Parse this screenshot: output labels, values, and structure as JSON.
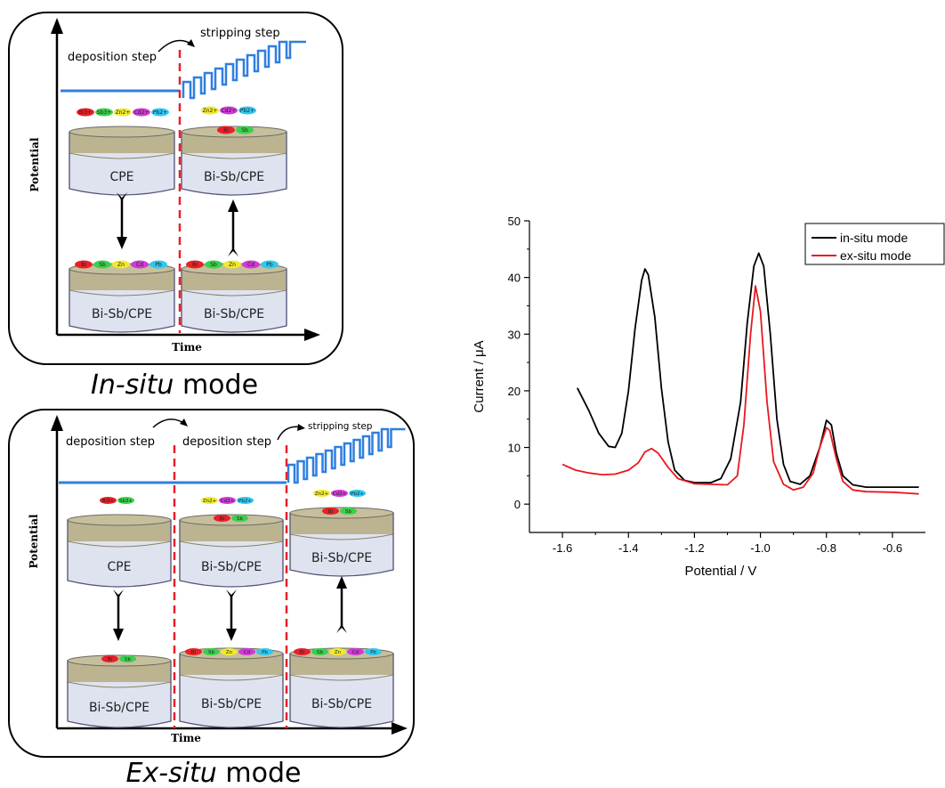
{
  "insitu": {
    "axis_y": "Potential",
    "axis_x": "Time",
    "deposition_label": "deposition step",
    "stripping_label": "stripping step",
    "caption_italic": "In-situ",
    "caption_rest": " mode",
    "solution_ions": [
      "Bi3+",
      "Sb3+",
      "Zn2+",
      "Cd2+",
      "Pb2+"
    ],
    "solution_ions_after": [
      "Zn2+",
      "Cd2+",
      "Pb2+"
    ],
    "deposited_top": [
      "Bi",
      "Sb"
    ],
    "deposited_bottom": [
      "Bi",
      "Sb",
      "Zn",
      "Cd",
      "Pb"
    ],
    "electrodes": [
      "CPE",
      "Bi-Sb/CPE",
      "Bi-Sb/CPE",
      "Bi-Sb/CPE"
    ]
  },
  "exsitu": {
    "axis_y": "Potential",
    "axis_x": "Time",
    "deposition_label_1": "deposition step",
    "deposition_label_2": "deposition step",
    "stripping_label": "stripping step",
    "caption_italic": "Ex-situ",
    "caption_rest": " mode",
    "solution_ions_1": [
      "Bi3+",
      "Sb3+"
    ],
    "solution_ions_2": [
      "Zn2+",
      "Cd2+",
      "Pb2+"
    ],
    "solution_ions_3": [
      "Zn2+",
      "Cd2+",
      "Pb2+"
    ],
    "deposited_bisb": [
      "Bi",
      "Sb"
    ],
    "deposited_full": [
      "Bi",
      "Sb",
      "Zn",
      "Cd",
      "Pb"
    ],
    "electrodes": [
      "CPE",
      "Bi-Sb/CPE",
      "Bi-Sb/CPE",
      "Bi-Sb/CPE",
      "Bi-Sb/CPE",
      "Bi-Sb/CPE"
    ]
  },
  "ion_colors": {
    "Bi": "#e8202a",
    "Sb": "#3ad14a",
    "Zn": "#f0ea2e",
    "Cd": "#d13ad6",
    "Pb": "#2ec8f0"
  },
  "chart_data": {
    "type": "line",
    "xlabel": "Potential / V",
    "ylabel": "Current / μA",
    "xlim": [
      -1.7,
      -0.5
    ],
    "ylim": [
      -5,
      50
    ],
    "xticks": [
      -1.6,
      -1.4,
      -1.2,
      -1.0,
      -0.8,
      -0.6
    ],
    "xtick_labels": [
      "-1.6",
      "-1.4",
      "-1.2",
      "-1.0",
      "-0.8",
      "-0.6"
    ],
    "yticks": [
      0,
      10,
      20,
      30,
      40,
      50
    ],
    "ytick_labels": [
      "0",
      "10",
      "20",
      "30",
      "40",
      "50"
    ],
    "legend_position": "top-right",
    "series": [
      {
        "name": "in-situ mode",
        "color": "#000000",
        "points": [
          [
            -1.555,
            20.5
          ],
          [
            -1.52,
            16.5
          ],
          [
            -1.49,
            12.5
          ],
          [
            -1.46,
            10.2
          ],
          [
            -1.44,
            10.0
          ],
          [
            -1.42,
            12.5
          ],
          [
            -1.4,
            20.0
          ],
          [
            -1.38,
            31.0
          ],
          [
            -1.36,
            39.5
          ],
          [
            -1.35,
            41.5
          ],
          [
            -1.34,
            40.5
          ],
          [
            -1.32,
            33.0
          ],
          [
            -1.3,
            20.5
          ],
          [
            -1.28,
            11.0
          ],
          [
            -1.26,
            6.0
          ],
          [
            -1.23,
            4.2
          ],
          [
            -1.2,
            3.8
          ],
          [
            -1.15,
            3.8
          ],
          [
            -1.12,
            4.5
          ],
          [
            -1.09,
            8.0
          ],
          [
            -1.06,
            18.0
          ],
          [
            -1.04,
            32.0
          ],
          [
            -1.02,
            42.0
          ],
          [
            -1.005,
            44.3
          ],
          [
            -0.99,
            42.0
          ],
          [
            -0.97,
            30.0
          ],
          [
            -0.95,
            15.0
          ],
          [
            -0.93,
            7.0
          ],
          [
            -0.91,
            4.0
          ],
          [
            -0.88,
            3.5
          ],
          [
            -0.85,
            5.0
          ],
          [
            -0.82,
            10.0
          ],
          [
            -0.8,
            14.8
          ],
          [
            -0.785,
            14.0
          ],
          [
            -0.77,
            9.0
          ],
          [
            -0.75,
            5.0
          ],
          [
            -0.72,
            3.4
          ],
          [
            -0.68,
            3.0
          ],
          [
            -0.6,
            3.0
          ],
          [
            -0.52,
            3.0
          ]
        ]
      },
      {
        "name": "ex-situ mode",
        "color": "#e8181e",
        "points": [
          [
            -1.6,
            7.0
          ],
          [
            -1.56,
            6.0
          ],
          [
            -1.52,
            5.5
          ],
          [
            -1.48,
            5.2
          ],
          [
            -1.44,
            5.3
          ],
          [
            -1.4,
            6.0
          ],
          [
            -1.37,
            7.3
          ],
          [
            -1.35,
            9.2
          ],
          [
            -1.33,
            9.8
          ],
          [
            -1.31,
            9.0
          ],
          [
            -1.28,
            6.5
          ],
          [
            -1.25,
            4.5
          ],
          [
            -1.2,
            3.6
          ],
          [
            -1.15,
            3.5
          ],
          [
            -1.1,
            3.4
          ],
          [
            -1.07,
            5.0
          ],
          [
            -1.05,
            14.0
          ],
          [
            -1.03,
            30.0
          ],
          [
            -1.015,
            38.5
          ],
          [
            -1.0,
            34.0
          ],
          [
            -0.98,
            18.0
          ],
          [
            -0.96,
            7.5
          ],
          [
            -0.93,
            3.5
          ],
          [
            -0.9,
            2.5
          ],
          [
            -0.87,
            3.0
          ],
          [
            -0.84,
            5.5
          ],
          [
            -0.82,
            10.0
          ],
          [
            -0.8,
            13.5
          ],
          [
            -0.79,
            13.0
          ],
          [
            -0.77,
            8.0
          ],
          [
            -0.75,
            4.0
          ],
          [
            -0.72,
            2.5
          ],
          [
            -0.68,
            2.2
          ],
          [
            -0.6,
            2.1
          ],
          [
            -0.52,
            1.8
          ]
        ]
      }
    ]
  }
}
